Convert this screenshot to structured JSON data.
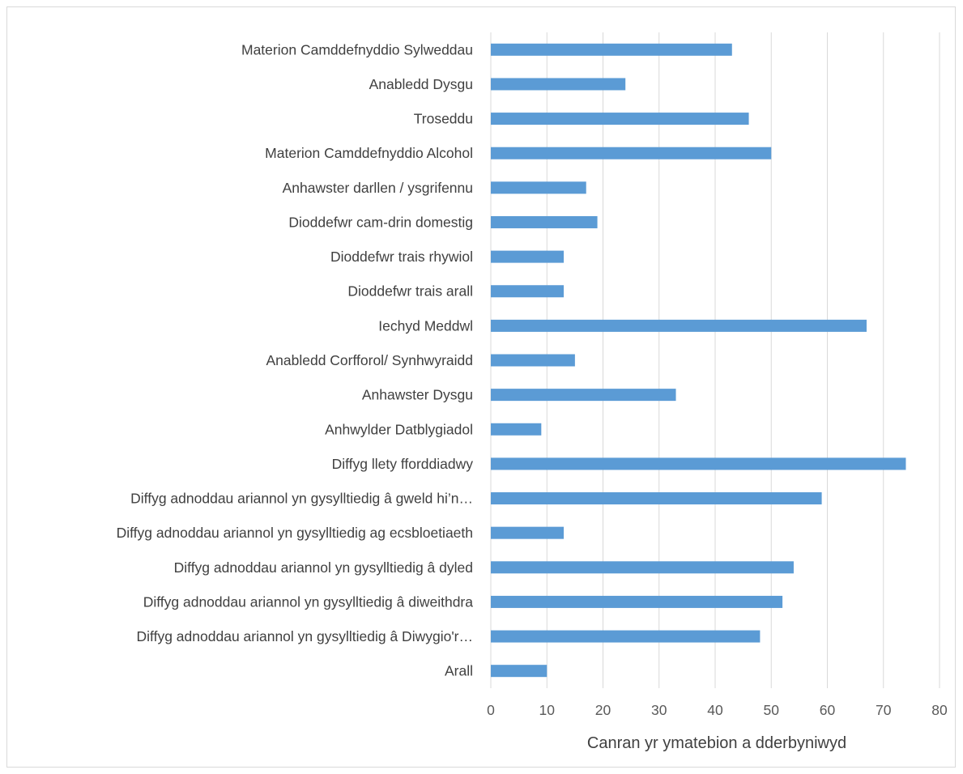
{
  "chart_data": {
    "type": "bar",
    "orientation": "horizontal",
    "categories": [
      "Materion Camddefnyddio Sylweddau",
      "Anabledd Dysgu",
      "Troseddu",
      "Materion Camddefnyddio Alcohol",
      "Anhawster darllen / ysgrifennu",
      "Dioddefwr cam-drin domestig",
      "Dioddefwr trais rhywiol",
      "Dioddefwr trais arall",
      "Iechyd Meddwl",
      "Anabledd Corfforol/ Synhwyraidd",
      "Anhawster Dysgu",
      "Anhwylder Datblygiadol",
      "Diffyg llety fforddiadwy",
      "Diffyg adnoddau ariannol yn gysylltiedig â gweld hi’n…",
      "Diffyg adnoddau ariannol yn gysylltiedig ag ecsbloetiaeth",
      "Diffyg adnoddau ariannol yn gysylltiedig â dyled",
      "Diffyg adnoddau ariannol yn gysylltiedig â diweithdra",
      "Diffyg adnoddau ariannol yn gysylltiedig â Diwygio'r…",
      "Arall"
    ],
    "values": [
      43,
      24,
      46,
      50,
      17,
      19,
      13,
      13,
      67,
      15,
      33,
      9,
      74,
      59,
      13,
      54,
      52,
      48,
      10
    ],
    "xlabel": "Canran yr ymatebion a dderbyniwyd",
    "ylabel": "",
    "title": "",
    "xlim": [
      0,
      80
    ],
    "xticks": [
      "0",
      "10",
      "20",
      "30",
      "40",
      "50",
      "60",
      "70",
      "80"
    ],
    "grid": "vertical",
    "bar_color": "#5b9bd5",
    "grid_color": "#d9d9d9"
  }
}
